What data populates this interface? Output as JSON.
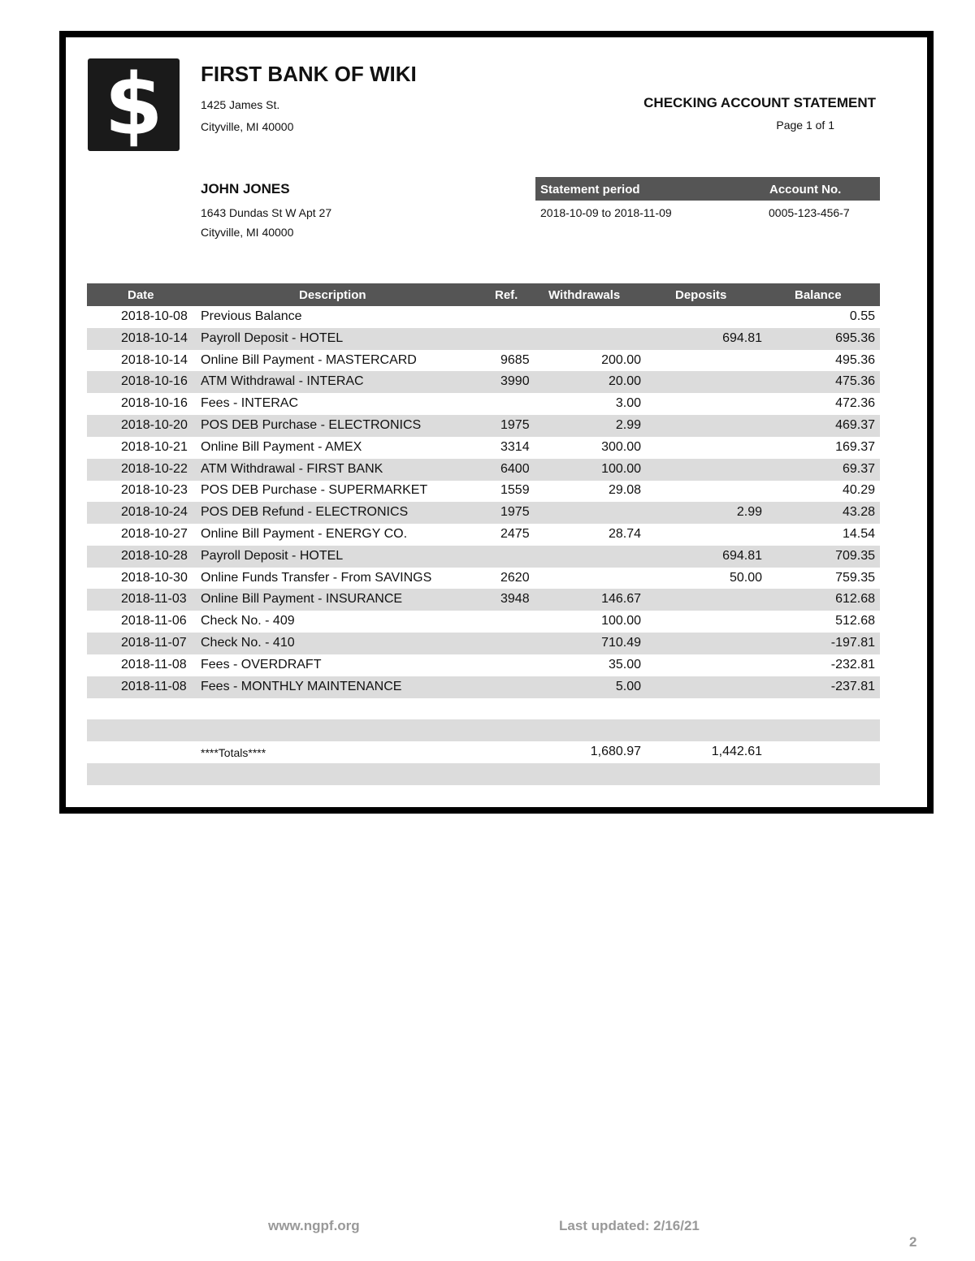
{
  "bank": {
    "logo_symbol": "$",
    "name": "FIRST BANK OF WIKI",
    "address_line1": "1425 James St.",
    "address_line2": "Cityville, MI 40000"
  },
  "statement": {
    "title": "CHECKING ACCOUNT STATEMENT",
    "page": "Page 1 of 1",
    "period_label": "Statement period",
    "period_value": "2018-10-09 to 2018-11-09",
    "account_label": "Account No.",
    "account_value": "0005-123-456-7"
  },
  "customer": {
    "name": "JOHN JONES",
    "address_line1": "1643 Dundas St W Apt 27",
    "address_line2": "Cityville, MI 40000"
  },
  "table": {
    "headers": {
      "date": "Date",
      "description": "Description",
      "ref": "Ref.",
      "withdrawals": "Withdrawals",
      "deposits": "Deposits",
      "balance": "Balance"
    },
    "rows": [
      {
        "date": "2018-10-08",
        "description": "Previous Balance",
        "ref": "",
        "withdrawals": "",
        "deposits": "",
        "balance": "0.55"
      },
      {
        "date": "2018-10-14",
        "description": "Payroll Deposit - HOTEL",
        "ref": "",
        "withdrawals": "",
        "deposits": "694.81",
        "balance": "695.36"
      },
      {
        "date": "2018-10-14",
        "description": "Online Bill Payment - MASTERCARD",
        "ref": "9685",
        "withdrawals": "200.00",
        "deposits": "",
        "balance": "495.36"
      },
      {
        "date": "2018-10-16",
        "description": "ATM Withdrawal - INTERAC",
        "ref": "3990",
        "withdrawals": "20.00",
        "deposits": "",
        "balance": "475.36"
      },
      {
        "date": "2018-10-16",
        "description": "Fees - INTERAC",
        "ref": "",
        "withdrawals": "3.00",
        "deposits": "",
        "balance": "472.36"
      },
      {
        "date": "2018-10-20",
        "description": "POS DEB Purchase - ELECTRONICS",
        "ref": "1975",
        "withdrawals": "2.99",
        "deposits": "",
        "balance": "469.37"
      },
      {
        "date": "2018-10-21",
        "description": "Online Bill Payment - AMEX",
        "ref": "3314",
        "withdrawals": "300.00",
        "deposits": "",
        "balance": "169.37"
      },
      {
        "date": "2018-10-22",
        "description": "ATM Withdrawal - FIRST BANK",
        "ref": "6400",
        "withdrawals": "100.00",
        "deposits": "",
        "balance": "69.37"
      },
      {
        "date": "2018-10-23",
        "description": "POS DEB Purchase - SUPERMARKET",
        "ref": "1559",
        "withdrawals": "29.08",
        "deposits": "",
        "balance": "40.29"
      },
      {
        "date": "2018-10-24",
        "description": "POS DEB Refund - ELECTRONICS",
        "ref": "1975",
        "withdrawals": "",
        "deposits": "2.99",
        "balance": "43.28"
      },
      {
        "date": "2018-10-27",
        "description": "Online Bill Payment - ENERGY CO.",
        "ref": "2475",
        "withdrawals": "28.74",
        "deposits": "",
        "balance": "14.54"
      },
      {
        "date": "2018-10-28",
        "description": "Payroll Deposit - HOTEL",
        "ref": "",
        "withdrawals": "",
        "deposits": "694.81",
        "balance": "709.35"
      },
      {
        "date": "2018-10-30",
        "description": "Online Funds Transfer - From SAVINGS",
        "ref": "2620",
        "withdrawals": "",
        "deposits": "50.00",
        "balance": "759.35"
      },
      {
        "date": "2018-11-03",
        "description": "Online Bill Payment - INSURANCE",
        "ref": "3948",
        "withdrawals": "146.67",
        "deposits": "",
        "balance": "612.68"
      },
      {
        "date": "2018-11-06",
        "description": "Check No. - 409",
        "ref": "",
        "withdrawals": "100.00",
        "deposits": "",
        "balance": "512.68"
      },
      {
        "date": "2018-11-07",
        "description": "Check No. - 410",
        "ref": "",
        "withdrawals": "710.49",
        "deposits": "",
        "balance": "-197.81"
      },
      {
        "date": "2018-11-08",
        "description": "Fees - OVERDRAFT",
        "ref": "",
        "withdrawals": "35.00",
        "deposits": "",
        "balance": "-232.81"
      },
      {
        "date": "2018-11-08",
        "description": "Fees - MONTHLY MAINTENANCE",
        "ref": "",
        "withdrawals": "5.00",
        "deposits": "",
        "balance": "-237.81"
      }
    ],
    "totals": {
      "label": "****Totals****",
      "withdrawals": "1,680.97",
      "deposits": "1,442.61"
    }
  },
  "footer": {
    "website": "www.ngpf.org",
    "updated": "Last updated: 2/16/21",
    "page_number": "2"
  }
}
